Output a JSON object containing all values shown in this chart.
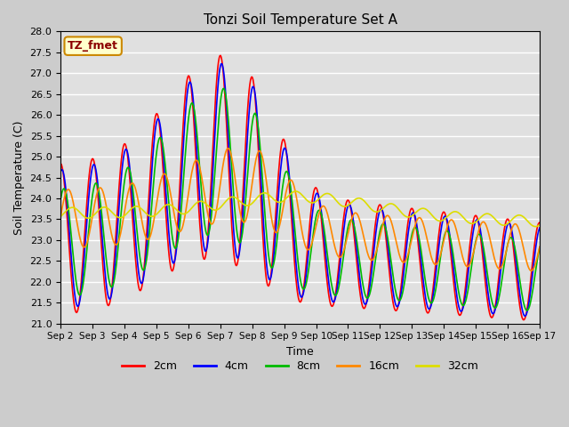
{
  "title": "Tonzi Soil Temperature Set A",
  "xlabel": "Time",
  "ylabel": "Soil Temperature (C)",
  "ylim": [
    21.0,
    28.0
  ],
  "yticks": [
    21.0,
    21.5,
    22.0,
    22.5,
    23.0,
    23.5,
    24.0,
    24.5,
    25.0,
    25.5,
    26.0,
    26.5,
    27.0,
    27.5,
    28.0
  ],
  "xtick_labels": [
    "Sep 2",
    "Sep 3",
    "Sep 4",
    "Sep 5",
    "Sep 6",
    "Sep 7",
    "Sep 8",
    "Sep 9",
    "Sep 10",
    "Sep 11",
    "Sep 12",
    "Sep 13",
    "Sep 14",
    "Sep 15",
    "Sep 16",
    "Sep 17"
  ],
  "legend_entries": [
    "2cm",
    "4cm",
    "8cm",
    "16cm",
    "32cm"
  ],
  "annotation_text": "TZ_fmet",
  "annotation_bg": "#ffffcc",
  "annotation_border": "#cc8800",
  "line_colors": [
    "#ff0000",
    "#0000ff",
    "#00bb00",
    "#ff8800",
    "#dddd00"
  ],
  "time_days": 15,
  "n_points": 720,
  "figsize": [
    6.4,
    4.8
  ],
  "dpi": 100
}
